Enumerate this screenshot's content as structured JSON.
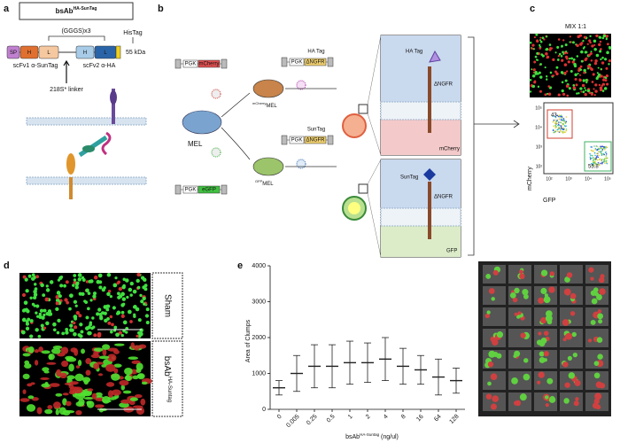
{
  "panels": {
    "a": {
      "label": "a",
      "title": {
        "main": "bsAb",
        "sup": "HA-SunTag"
      },
      "linker_top": "(GGGS)x3",
      "his_tag": "HisTag",
      "mass": "55 kDa",
      "segments": [
        "SP",
        "H",
        "L",
        "H",
        "L"
      ],
      "scfv1": "scFv1 α-SunTag",
      "scfv2": "scFv2 α-HA",
      "linker": "218S* linker"
    },
    "b": {
      "label": "b",
      "mel": "MEL",
      "pgk": "PGK",
      "mcherry": "mCherry",
      "egfp": "eGFP",
      "ha_tag": "HA Tag",
      "suntag": "SunTag",
      "ngfr": "ΔNGFR",
      "mcherry_mel": {
        "sup": "mCherry",
        "main": "MEL"
      },
      "gfp_mel": {
        "sup": "GFP",
        "main": "MEL"
      },
      "gfp": "GFP"
    },
    "c": {
      "label": "c",
      "title": "MIX 1:1",
      "gate_red": "43",
      "gate_green": "55.8",
      "y_label": "mCherry",
      "x_label": "GFP",
      "y_ticks": [
        "10⁵",
        "10⁴",
        "10³",
        "10²"
      ],
      "x_ticks": [
        "10²",
        "10³",
        "10⁴",
        "10⁵"
      ]
    },
    "d": {
      "label": "d",
      "top": "Sham",
      "bottom": {
        "main": "bsAb",
        "sup": "HA-Suntag"
      }
    },
    "e": {
      "label": "e"
    }
  },
  "chart_data": {
    "type": "dot",
    "y_label": "Area of Clumps",
    "x_label": {
      "main": "bsAb",
      "sup": "HA-Suntag",
      "unit": " (ng/ul)"
    },
    "categories": [
      "0",
      "0.005",
      "0.25",
      "0.5",
      "1",
      "2",
      "4",
      "8",
      "16",
      "64",
      "128"
    ],
    "values": [
      600,
      1000,
      1200,
      1200,
      1300,
      1300,
      1400,
      1200,
      1100,
      900,
      800
    ],
    "errors": [
      200,
      500,
      600,
      600,
      600,
      550,
      600,
      500,
      400,
      500,
      350
    ],
    "color": "#222222",
    "ylim": [
      0,
      4000
    ],
    "yticks": [
      0,
      1000,
      2000,
      3000,
      4000
    ]
  }
}
